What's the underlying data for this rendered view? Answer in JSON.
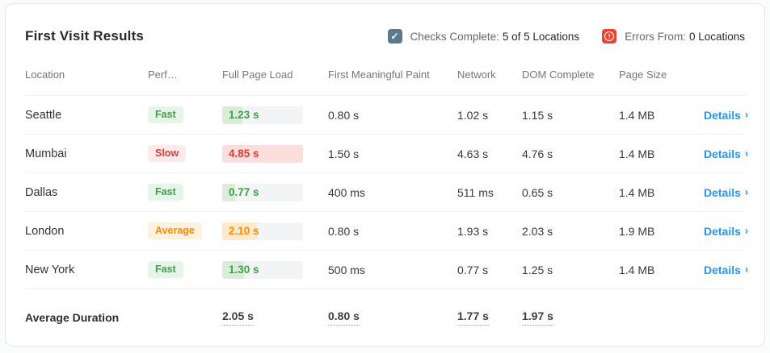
{
  "header": {
    "title": "First Visit Results",
    "checks": {
      "label": "Checks Complete:",
      "value": "5 of 5 Locations"
    },
    "errors": {
      "label": "Errors From:",
      "value": "0 Locations"
    }
  },
  "table": {
    "columns": [
      "Location",
      "Perf…",
      "Full Page Load",
      "First Meaningful Paint",
      "Network",
      "DOM Complete",
      "Page Size",
      ""
    ],
    "rows": [
      {
        "location": "Seattle",
        "perf": "Fast",
        "status": "fast",
        "full_page_load": "1.23 s",
        "load_pct": 25,
        "first_meaningful_paint": "0.80 s",
        "network": "1.02 s",
        "dom_complete": "1.15 s",
        "page_size": "1.4 MB",
        "details_label": "Details"
      },
      {
        "location": "Mumbai",
        "perf": "Slow",
        "status": "slow",
        "full_page_load": "4.85 s",
        "load_pct": 100,
        "first_meaningful_paint": "1.50 s",
        "network": "4.63 s",
        "dom_complete": "4.76 s",
        "page_size": "1.4 MB",
        "details_label": "Details"
      },
      {
        "location": "Dallas",
        "perf": "Fast",
        "status": "fast",
        "full_page_load": "0.77 s",
        "load_pct": 16,
        "first_meaningful_paint": "400 ms",
        "network": "511 ms",
        "dom_complete": "0.65 s",
        "page_size": "1.4 MB",
        "details_label": "Details"
      },
      {
        "location": "London",
        "perf": "Average",
        "status": "average",
        "full_page_load": "2.10 s",
        "load_pct": 43,
        "first_meaningful_paint": "0.80 s",
        "network": "1.93 s",
        "dom_complete": "2.03 s",
        "page_size": "1.9 MB",
        "details_label": "Details"
      },
      {
        "location": "New York",
        "perf": "Fast",
        "status": "fast",
        "full_page_load": "1.30 s",
        "load_pct": 27,
        "first_meaningful_paint": "500 ms",
        "network": "0.77 s",
        "dom_complete": "1.25 s",
        "page_size": "1.4 MB",
        "details_label": "Details"
      }
    ],
    "footer": {
      "label": "Average Duration",
      "full_page_load": "2.05 s",
      "first_meaningful_paint": "0.80 s",
      "network": "1.77 s",
      "dom_complete": "1.97 s"
    }
  },
  "icons": {
    "checks": "checkbox-checked-icon",
    "errors": "error-exclamation-icon",
    "details": "chevron-right-icon"
  },
  "colors": {
    "fast_text": "#3fa14b",
    "fast_bg": "#e7f4e8",
    "slow_text": "#e53935",
    "slow_bg": "#fdeaea",
    "average_text": "#fb8c00",
    "average_bg": "#fef1dd",
    "link_blue": "#2196f3",
    "check_icon_bg": "#5c7a8a",
    "error_icon_bg": "#ef4335"
  }
}
